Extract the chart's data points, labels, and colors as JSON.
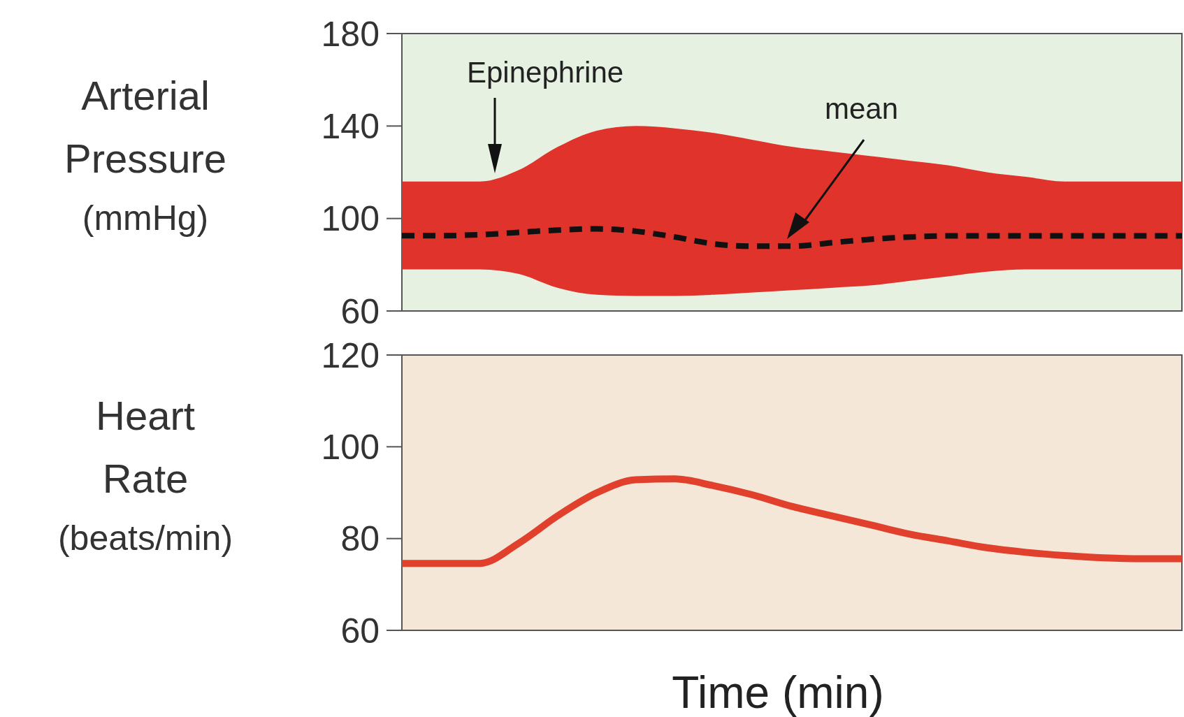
{
  "chart_data": [
    {
      "type": "line",
      "ylabel": "Arterial Pressure (mmHg)",
      "categories": [
        null,
        null,
        null,
        null,
        null,
        null,
        null,
        null,
        null,
        null,
        null,
        null,
        null,
        null,
        null,
        null,
        null,
        null,
        null,
        null,
        null
      ],
      "ylim": [
        60,
        180
      ],
      "yticks": [
        60,
        100,
        140,
        180
      ],
      "tick_labels": "y",
      "annotations": [
        "Epinephrine",
        "mean"
      ],
      "series": [
        {
          "color": "#111111",
          "line_style": "dashed",
          "values": [
            92.6,
            92.6,
            93,
            94,
            95,
            95.5,
            94.5,
            92,
            89,
            88,
            88,
            89.5,
            91,
            92,
            92.5,
            92.5,
            92.5,
            92.5,
            92.5,
            92.5,
            92.5
          ],
          "lower": [
            78,
            78,
            78,
            76,
            70,
            67,
            66.5,
            66.5,
            67,
            68,
            69,
            70,
            71,
            73,
            75,
            77,
            78,
            78,
            78,
            78,
            78
          ],
          "upper": [
            116,
            116,
            116,
            121,
            131,
            138,
            140,
            139,
            137,
            134,
            131,
            129,
            127,
            125,
            123,
            120,
            118,
            116,
            116,
            116,
            116
          ]
        }
      ]
    },
    {
      "type": "line",
      "ylabel": "Heart Rate (beats/min)",
      "xlabel": "Time (min)",
      "categories": [
        null,
        null,
        null,
        null,
        null,
        null,
        null,
        null,
        null,
        null,
        null,
        null,
        null,
        null,
        null,
        null,
        null,
        null,
        null,
        null,
        null
      ],
      "ylim": [
        60,
        120
      ],
      "yticks": [
        60,
        80,
        100,
        120
      ],
      "tick_labels": "y",
      "series": [
        {
          "color": "#e0402c",
          "values": [
            74.6,
            74.6,
            74.6,
            79,
            85,
            90,
            92.8,
            93,
            91.5,
            89.5,
            87,
            85,
            83,
            81,
            79.5,
            78,
            77,
            76.3,
            75.8,
            75.6,
            75.6
          ]
        }
      ]
    }
  ]
}
